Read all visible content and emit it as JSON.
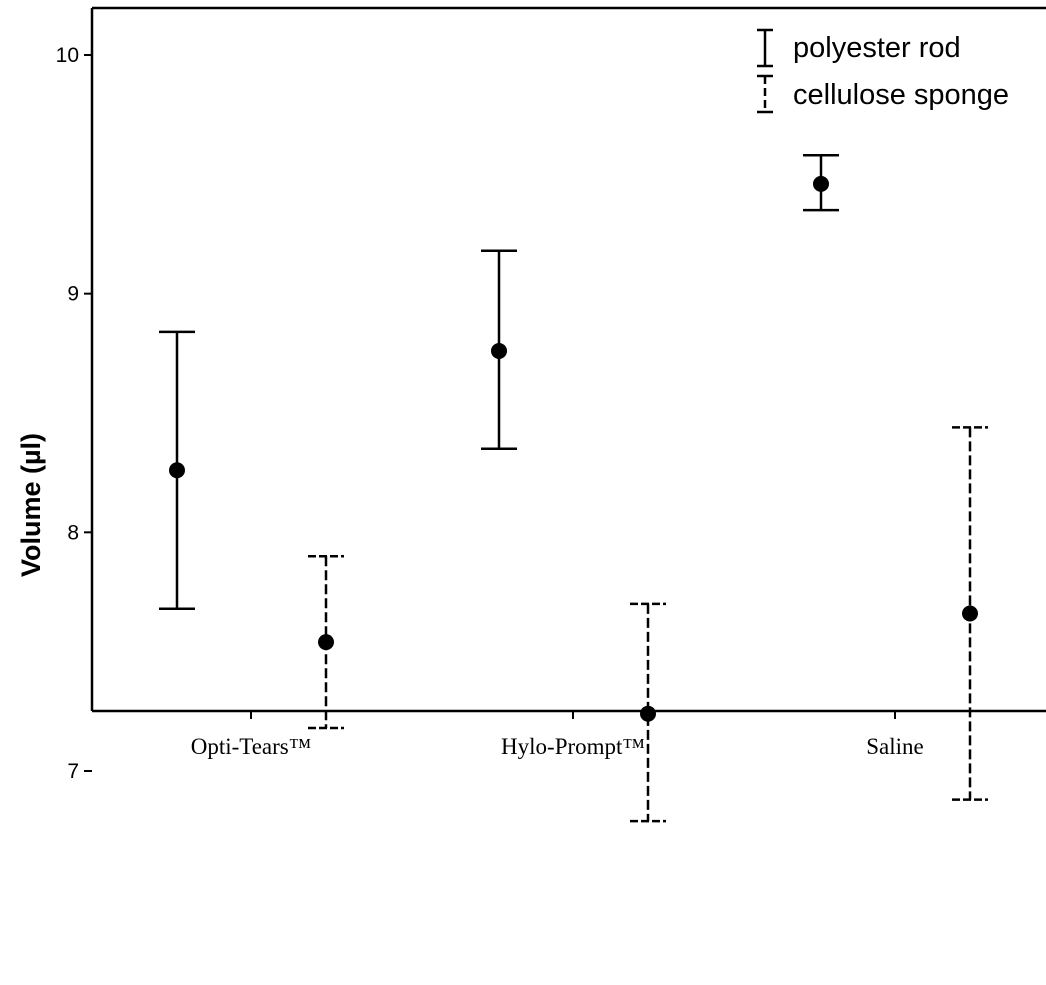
{
  "chart_data": {
    "type": "scatter",
    "subtype": "error-bar",
    "title": "",
    "xlabel": "",
    "ylabel": "Volume (µl)",
    "categories": [
      "Opti-Tears™",
      "Hylo-Prompt™",
      "Saline"
    ],
    "ylim": [
      6.3,
      10.2
    ],
    "yticks": [
      7,
      8,
      9,
      10
    ],
    "grid": false,
    "legend_position": "top-right",
    "series": [
      {
        "name": "polyester rod",
        "line_style": "solid",
        "points": [
          {
            "category": "Opti-Tears™",
            "mean": 8.26,
            "lower": 7.68,
            "upper": 8.84
          },
          {
            "category": "Hylo-Prompt™",
            "mean": 8.76,
            "lower": 8.35,
            "upper": 9.18
          },
          {
            "category": "Saline",
            "mean": 9.46,
            "lower": 9.35,
            "upper": 9.58
          }
        ]
      },
      {
        "name": "cellulose sponge",
        "line_style": "dashed",
        "points": [
          {
            "category": "Opti-Tears™",
            "mean": 7.54,
            "lower": 7.18,
            "upper": 7.9
          },
          {
            "category": "Hylo-Prompt™",
            "mean": 7.24,
            "lower": 6.79,
            "upper": 7.7
          },
          {
            "category": "Saline",
            "mean": 7.66,
            "lower": 6.88,
            "upper": 8.44
          }
        ]
      }
    ]
  }
}
